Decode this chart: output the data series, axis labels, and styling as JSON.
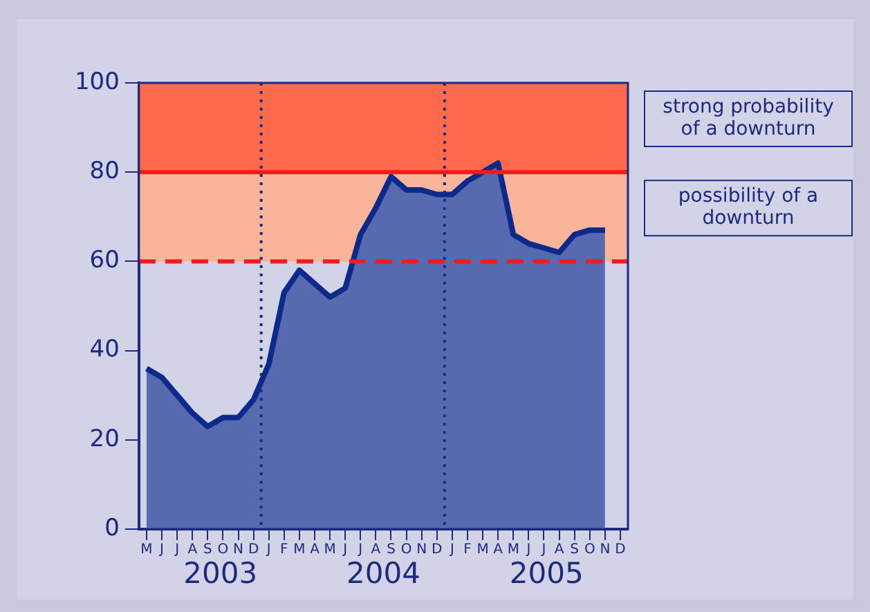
{
  "chart_data": {
    "type": "area",
    "categories": [
      "M",
      "J",
      "J",
      "A",
      "S",
      "O",
      "N",
      "D",
      "J",
      "F",
      "M",
      "A",
      "M",
      "J",
      "J",
      "A",
      "S",
      "O",
      "N",
      "D",
      "J",
      "F",
      "M",
      "A",
      "M",
      "J",
      "J",
      "A",
      "S",
      "O",
      "N",
      "D"
    ],
    "series": [
      {
        "color": "#0c2a8c",
        "values": [
          36,
          34,
          30,
          26,
          23,
          25,
          25,
          29,
          37,
          53,
          58,
          55,
          52,
          54,
          66,
          72,
          79,
          76,
          76,
          75,
          75,
          78,
          80,
          82,
          66,
          64,
          63,
          62,
          66,
          67,
          67,
          null
        ]
      }
    ],
    "ylim": [
      0,
      100
    ],
    "yticks": [
      0,
      20,
      40,
      60,
      80,
      100
    ],
    "bands": [
      {
        "axis": "y",
        "from": 80,
        "to": 100,
        "label": "strong probability of a downturn",
        "color": "#ff6a4d"
      },
      {
        "axis": "y",
        "from": 60,
        "to": 80,
        "label": "possibility of a downturn",
        "color": "#f9b49a"
      }
    ],
    "ref_lines": [
      {
        "axis": "y",
        "value": 80,
        "color": "#ee1c1c",
        "line_style": "solid"
      },
      {
        "axis": "y",
        "value": 60,
        "color": "#ee1c1c",
        "line_style": "dashed"
      }
    ],
    "annotations": [
      "2003",
      "2004",
      "2005"
    ],
    "grid": false,
    "legend": false
  }
}
